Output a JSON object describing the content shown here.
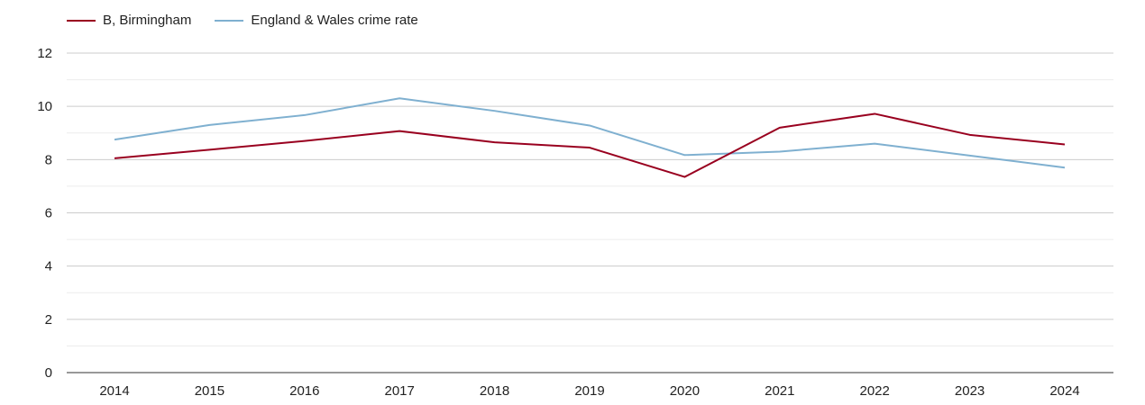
{
  "chart_data": {
    "type": "line",
    "title": "",
    "xlabel": "",
    "ylabel": "",
    "x": [
      "2014",
      "2015",
      "2016",
      "2017",
      "2018",
      "2019",
      "2020",
      "2021",
      "2022",
      "2023",
      "2024"
    ],
    "ylim": [
      0,
      12
    ],
    "yticks": [
      "0",
      "2",
      "4",
      "6",
      "8",
      "10",
      "12"
    ],
    "grid": true,
    "legend_position": "top-left",
    "series": [
      {
        "name": "B, Birmingham",
        "color": "#99001f",
        "values": [
          8.05,
          8.37,
          8.7,
          9.07,
          8.65,
          8.45,
          7.35,
          9.2,
          9.72,
          8.93,
          8.57
        ]
      },
      {
        "name": "England & Wales crime rate",
        "color": "#7fb0d0",
        "values": [
          8.75,
          9.3,
          9.67,
          10.3,
          9.83,
          9.28,
          8.17,
          8.3,
          8.6,
          8.15,
          7.7
        ]
      }
    ]
  }
}
